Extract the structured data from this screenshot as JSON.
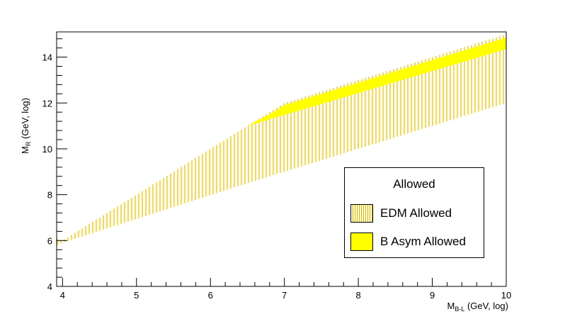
{
  "chart_data": {
    "type": "area",
    "title": "",
    "xlabel": "M",
    "xlabel_sub": "B-L",
    "xlabel_unit": " (GeV, log)",
    "ylabel": "M",
    "ylabel_sub": "R",
    "ylabel_unit": " (GeV, log)",
    "xlim": [
      3.92,
      10.0
    ],
    "ylim": [
      4,
      15.1
    ],
    "x_ticks": [
      4,
      5,
      6,
      7,
      8,
      9,
      10
    ],
    "y_ticks": [
      4,
      6,
      8,
      10,
      12,
      14
    ],
    "grid": false,
    "legend_position": "bottom-right",
    "legend_title": "Allowed",
    "series": [
      {
        "name": "EDM Allowed",
        "style": "vertical-hatch",
        "color": "#d4b800",
        "lower": [
          [
            3.92,
            5.8
          ],
          [
            4.0,
            5.9
          ],
          [
            6.5,
            8.5
          ],
          [
            10.0,
            12.0
          ]
        ],
        "upper": [
          [
            3.92,
            6.1
          ],
          [
            4.0,
            6.0
          ],
          [
            6.5,
            11.0
          ],
          [
            7.0,
            12.0
          ],
          [
            10.0,
            15.0
          ]
        ]
      },
      {
        "name": "B Asym Allowed",
        "style": "solid",
        "color": "#ffff00",
        "lower": [
          [
            6.5,
            11.0
          ],
          [
            10.0,
            14.35
          ]
        ],
        "upper": [
          [
            6.5,
            11.0
          ],
          [
            6.85,
            11.6
          ],
          [
            7.0,
            11.9
          ],
          [
            10.0,
            14.85
          ]
        ]
      }
    ]
  }
}
